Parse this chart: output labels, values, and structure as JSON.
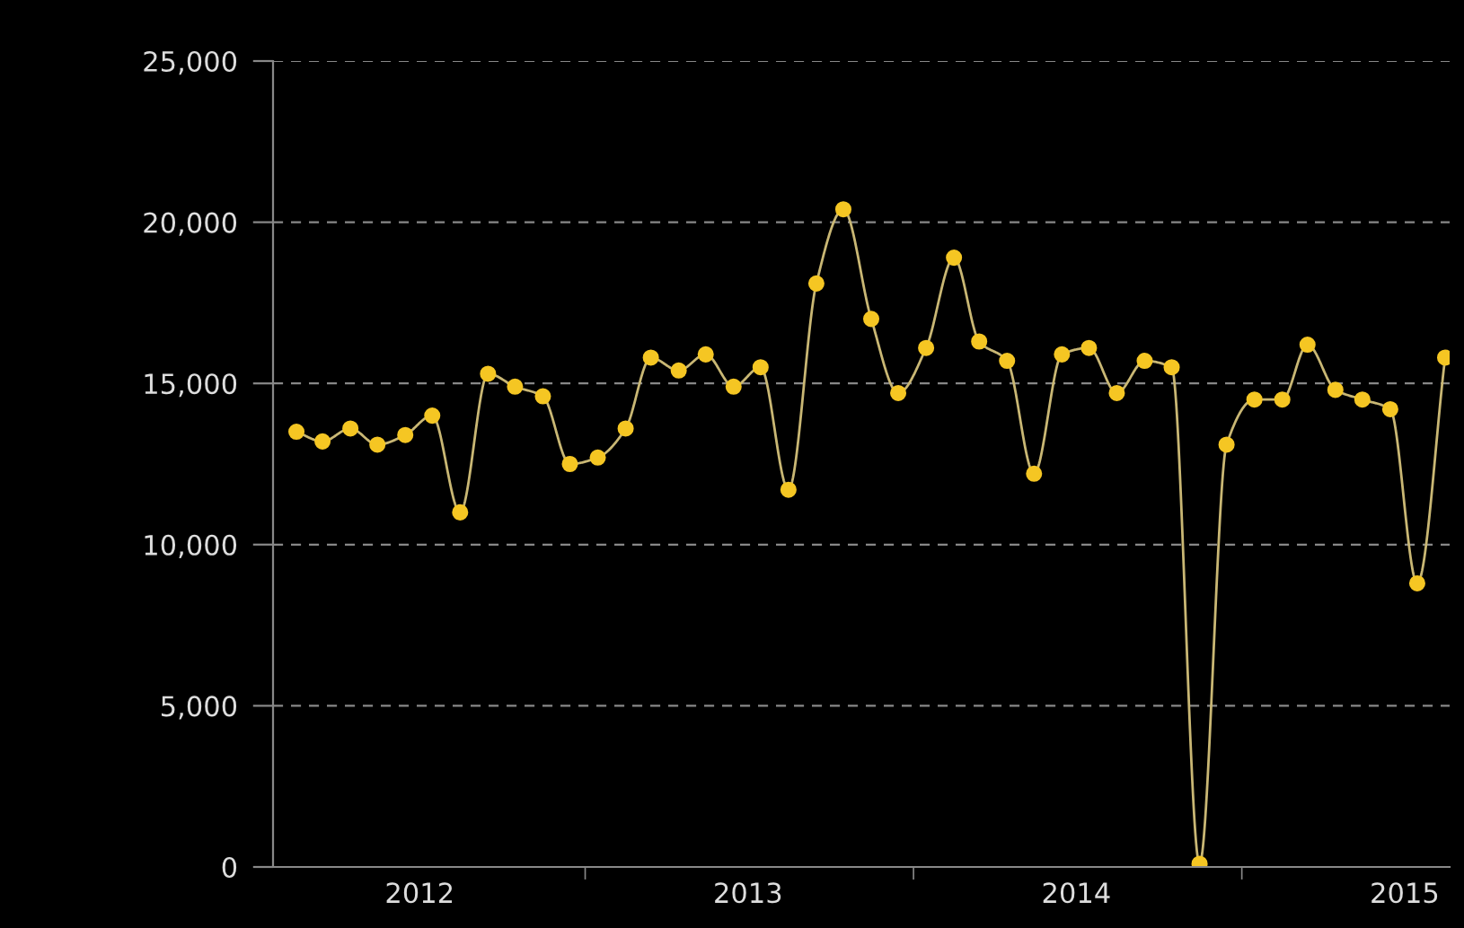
{
  "chart_data": {
    "type": "line",
    "x": [
      "2012-02-15",
      "2012-03-15",
      "2012-04-15",
      "2012-05-15",
      "2012-06-15",
      "2012-07-15",
      "2012-08-15",
      "2012-09-15",
      "2012-10-15",
      "2012-11-15",
      "2012-12-15",
      "2013-01-15",
      "2013-02-15",
      "2013-03-15",
      "2013-04-15",
      "2013-05-15",
      "2013-06-15",
      "2013-07-15",
      "2013-08-15",
      "2013-09-15",
      "2013-10-15",
      "2013-11-15",
      "2013-12-15",
      "2014-01-15",
      "2014-02-15",
      "2014-03-15",
      "2014-04-15",
      "2014-05-15",
      "2014-06-15",
      "2014-07-15",
      "2014-08-15",
      "2014-09-15",
      "2014-10-15",
      "2014-11-15",
      "2014-12-15",
      "2015-01-15",
      "2015-02-15",
      "2015-03-15",
      "2015-04-15",
      "2015-05-15",
      "2015-06-15",
      "2015-07-15",
      "2015-08-15"
    ],
    "series": [
      {
        "color": "#f5c623",
        "values": [
          13500,
          13200,
          13600,
          13100,
          13400,
          14000,
          11000,
          15300,
          14900,
          14600,
          12500,
          12700,
          13600,
          15800,
          15400,
          15900,
          14900,
          15500,
          11700,
          18100,
          20400,
          17000,
          14700,
          16100,
          18900,
          16300,
          15700,
          12200,
          15900,
          16100,
          14700,
          15700,
          15500,
          100,
          13100,
          14500,
          14500,
          16200,
          14800,
          14500,
          14200,
          8800,
          15800
        ]
      }
    ],
    "xlim": [
      "2012-01-20",
      "2015-08-20"
    ],
    "xticks": [
      {
        "value": "2012-07-01",
        "label": "2012"
      },
      {
        "value": "2013-01-01",
        "label": null
      },
      {
        "value": "2013-07-01",
        "label": "2013"
      },
      {
        "value": "2014-01-01",
        "label": null
      },
      {
        "value": "2014-07-01",
        "label": "2014"
      },
      {
        "value": "2015-01-01",
        "label": null
      },
      {
        "value": "2015-07-01",
        "label": "2015"
      }
    ],
    "ylim": [
      0,
      25000
    ],
    "yticks": [
      {
        "value": 0,
        "label": "0"
      },
      {
        "value": 5000,
        "label": "5,000"
      },
      {
        "value": 10000,
        "label": "10,000"
      },
      {
        "value": 15000,
        "label": "15,000"
      },
      {
        "value": 20000,
        "label": "20,000"
      },
      {
        "value": 25000,
        "label": "25,000"
      }
    ],
    "grid": "y",
    "marker": "circle",
    "line_style": "solid",
    "legend": false
  }
}
